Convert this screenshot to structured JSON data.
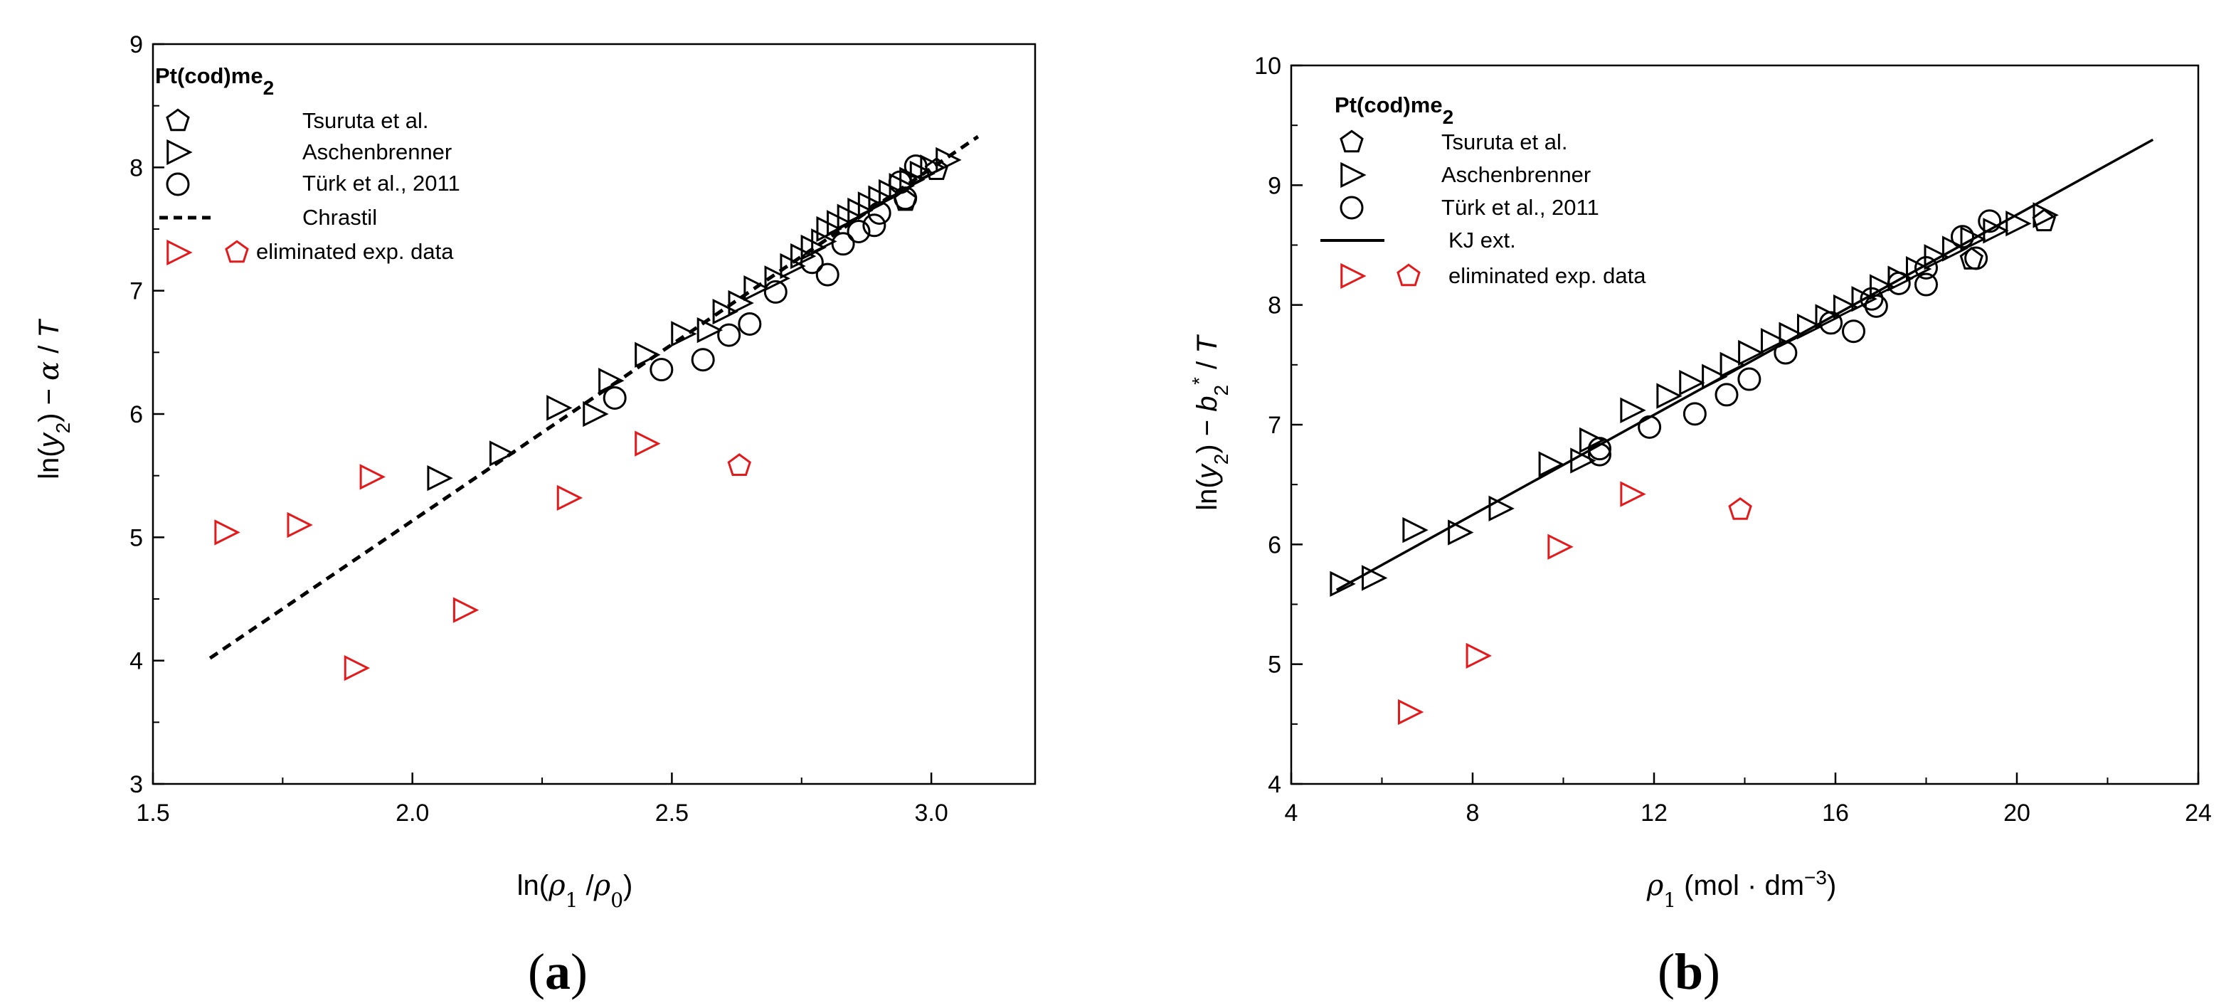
{
  "chart_data": [
    {
      "type": "scatter",
      "panel_label": "a",
      "xlabel": "ln(ρ1 /ρ0)",
      "ylabel": "ln(y2) − α / T",
      "xlim": [
        1.5,
        3.2
      ],
      "ylim": [
        3,
        9
      ],
      "xticks": [
        "1.5",
        "2.0",
        "2.5",
        "3.0"
      ],
      "yticks": [
        "3",
        "4",
        "5",
        "6",
        "7",
        "8",
        "9"
      ],
      "legend_title": "Pt(cod)me2",
      "legend": [
        "Tsuruta et al.",
        "Aschenbrenner",
        "Türk et al., 2011",
        "Chrastil",
        "eliminated exp. data"
      ],
      "fit_line": {
        "name": "Chrastil",
        "style": "dashed",
        "x": [
          1.61,
          3.09
        ],
        "y": [
          4.02,
          8.25
        ]
      },
      "series": [
        {
          "name": "Tsuruta et al.",
          "marker": "pentagon",
          "color": "#000000",
          "x": [
            2.95,
            3.01
          ],
          "y": [
            7.73,
            7.98
          ]
        },
        {
          "name": "Aschenbrenner",
          "marker": "triangle-right",
          "color": "#000000",
          "x": [
            2.05,
            2.17,
            2.28,
            2.35,
            2.38,
            2.45,
            2.52,
            2.57,
            2.6,
            2.63,
            2.66,
            2.7,
            2.73,
            2.75,
            2.77,
            2.79,
            2.8,
            2.82,
            2.84,
            2.86,
            2.88,
            2.9,
            2.92,
            2.94,
            2.96,
            2.98,
            3.0,
            3.03
          ],
          "y": [
            5.48,
            5.68,
            6.05,
            6.0,
            6.27,
            6.48,
            6.65,
            6.68,
            6.83,
            6.9,
            7.02,
            7.1,
            7.2,
            7.28,
            7.35,
            7.4,
            7.5,
            7.55,
            7.6,
            7.65,
            7.7,
            7.75,
            7.8,
            7.85,
            7.9,
            7.95,
            8.0,
            8.06
          ]
        },
        {
          "name": "Türk et al., 2011",
          "marker": "circle",
          "color": "#000000",
          "x": [
            2.39,
            2.48,
            2.56,
            2.61,
            2.65,
            2.7,
            2.77,
            2.8,
            2.83,
            2.86,
            2.89,
            2.9,
            2.94,
            2.95,
            2.97
          ],
          "y": [
            6.13,
            6.36,
            6.44,
            6.64,
            6.73,
            6.99,
            7.23,
            7.13,
            7.38,
            7.48,
            7.53,
            7.63,
            7.88,
            7.75,
            8.01
          ]
        },
        {
          "name": "eliminated exp. data",
          "marker": "triangle-right",
          "color": "#e31a1c",
          "x": [
            1.64,
            1.78,
            1.89,
            1.92,
            2.1,
            2.3,
            2.45
          ],
          "y": [
            5.04,
            5.1,
            3.94,
            5.49,
            4.41,
            5.32,
            5.76
          ]
        },
        {
          "name": "eliminated exp. data",
          "marker": "pentagon",
          "color": "#e31a1c",
          "x": [
            2.63
          ],
          "y": [
            5.58
          ]
        }
      ]
    },
    {
      "type": "scatter",
      "panel_label": "b",
      "xlabel": "ρ1 (mol · dm−3)",
      "ylabel": "ln(y2) − b2* / T",
      "xlim": [
        4,
        24
      ],
      "ylim": [
        4,
        10
      ],
      "xticks": [
        "4",
        "8",
        "12",
        "16",
        "20",
        "24"
      ],
      "yticks": [
        "4",
        "5",
        "6",
        "7",
        "8",
        "9",
        "10"
      ],
      "legend_title": "Pt(cod)me2",
      "legend": [
        "Tsuruta et al.",
        "Aschenbrenner",
        "Türk et al., 2011",
        "KJ ext.",
        "eliminated exp. data"
      ],
      "fit_line": {
        "name": "KJ ext.",
        "style": "solid",
        "x": [
          5.0,
          23.0
        ],
        "y": [
          5.62,
          9.38
        ]
      },
      "series": [
        {
          "name": "Tsuruta et al.",
          "marker": "pentagon",
          "color": "#000000",
          "x": [
            19.0,
            20.6
          ],
          "y": [
            8.38,
            8.7
          ]
        },
        {
          "name": "Aschenbrenner",
          "marker": "triangle-right",
          "color": "#000000",
          "x": [
            5.1,
            5.8,
            6.7,
            7.7,
            8.6,
            9.7,
            10.4,
            10.6,
            11.5,
            12.3,
            12.8,
            13.3,
            13.7,
            14.1,
            14.6,
            15.0,
            15.4,
            15.8,
            16.2,
            16.6,
            17.0,
            17.4,
            17.8,
            18.2,
            18.6,
            19.0,
            19.5,
            20.0,
            20.6
          ],
          "y": [
            5.67,
            5.72,
            6.12,
            6.1,
            6.3,
            6.67,
            6.7,
            6.87,
            7.12,
            7.24,
            7.35,
            7.4,
            7.5,
            7.6,
            7.7,
            7.75,
            7.82,
            7.9,
            7.98,
            8.05,
            8.15,
            8.22,
            8.3,
            8.4,
            8.47,
            8.55,
            8.62,
            8.68,
            8.75
          ]
        },
        {
          "name": "Türk et al., 2011",
          "marker": "circle",
          "color": "#000000",
          "x": [
            10.8,
            10.8,
            11.9,
            12.9,
            13.6,
            14.1,
            14.9,
            15.9,
            16.4,
            16.8,
            16.9,
            17.4,
            18.0,
            18.0,
            18.8,
            19.1,
            19.4
          ],
          "y": [
            6.8,
            6.75,
            6.98,
            7.09,
            7.25,
            7.38,
            7.6,
            7.85,
            7.78,
            8.05,
            7.99,
            8.18,
            8.31,
            8.17,
            8.57,
            8.39,
            8.7
          ]
        },
        {
          "name": "eliminated exp. data",
          "marker": "triangle-right",
          "color": "#e31a1c",
          "x": [
            6.6,
            8.1,
            9.9,
            11.5
          ],
          "y": [
            4.6,
            5.07,
            5.98,
            6.42
          ]
        },
        {
          "name": "eliminated exp. data",
          "marker": "pentagon",
          "color": "#e31a1c",
          "x": [
            13.9
          ],
          "y": [
            6.29
          ]
        }
      ]
    }
  ]
}
